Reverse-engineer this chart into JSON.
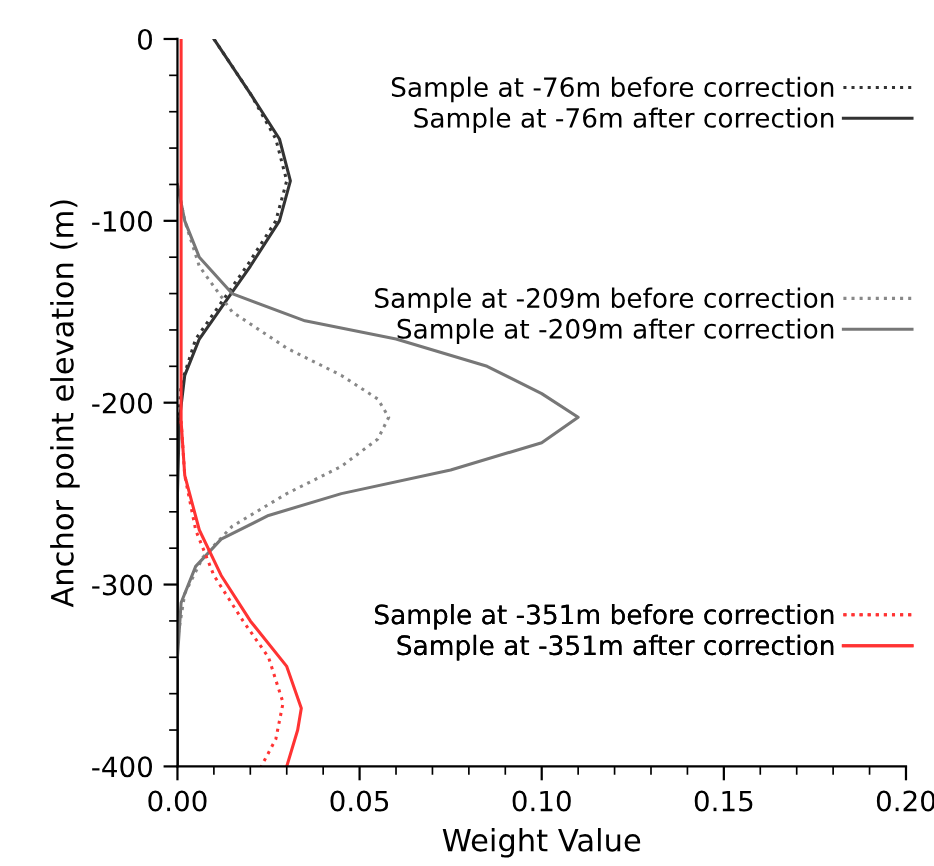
{
  "chart_data": {
    "type": "line",
    "xlabel": "Weight Value",
    "ylabel": "Anchor point elevation (m)",
    "xlim": [
      0,
      0.2
    ],
    "xticks": [
      {
        "value": 0,
        "label": "0.00"
      },
      {
        "value": 0.05,
        "label": "0.05"
      },
      {
        "value": 0.1,
        "label": "0.10"
      },
      {
        "value": 0.15,
        "label": "0.15"
      },
      {
        "value": 0.2,
        "label": "0.20"
      }
    ],
    "ylim": [
      -400,
      0
    ],
    "yticks": [
      0,
      -100,
      -200,
      -300,
      -400
    ],
    "grid": false,
    "legend": "right",
    "marker": "none",
    "series": [
      {
        "name": "Sample at -76m before correction",
        "color": "#333333",
        "line_style": "dotted",
        "x": [
          0.01,
          0.02,
          0.027,
          0.03,
          0.027,
          0.019,
          0.012,
          0.005,
          0.001,
          0,
          0
        ],
        "values": [
          0,
          -30,
          -55,
          -78,
          -100,
          -125,
          -145,
          -165,
          -190,
          -220,
          -400
        ]
      },
      {
        "name": "Sample at -76m after correction",
        "color": "#333333",
        "line_style": "solid",
        "x": [
          0.01,
          0.02,
          0.028,
          0.031,
          0.028,
          0.02,
          0.013,
          0.006,
          0.002,
          0.0005,
          0,
          0
        ],
        "values": [
          0,
          -30,
          -55,
          -78,
          -100,
          -125,
          -145,
          -165,
          -185,
          -210,
          -250,
          -400
        ]
      },
      {
        "name": "Sample at -209m before correction",
        "color": "#888888",
        "line_style": "dotted",
        "x": [
          0,
          0.002,
          0.006,
          0.015,
          0.03,
          0.045,
          0.055,
          0.058,
          0.055,
          0.045,
          0.03,
          0.015,
          0.007,
          0.002,
          0
        ],
        "values": [
          -80,
          -100,
          -125,
          -150,
          -170,
          -185,
          -198,
          -208,
          -220,
          -235,
          -250,
          -268,
          -285,
          -305,
          -330
        ]
      },
      {
        "name": "Sample at -209m after correction",
        "color": "#777777",
        "line_style": "solid",
        "x": [
          0,
          0.002,
          0.006,
          0.015,
          0.035,
          0.06,
          0.085,
          0.1,
          0.11,
          0.1,
          0.075,
          0.045,
          0.025,
          0.012,
          0.005,
          0.001,
          0
        ],
        "values": [
          -80,
          -100,
          -120,
          -140,
          -155,
          -165,
          -180,
          -195,
          -208,
          -222,
          -237,
          -250,
          -262,
          -275,
          -290,
          -310,
          -340
        ]
      },
      {
        "name": "Sample at -351m before correction",
        "color": "#ff3333",
        "line_style": "dotted",
        "x": [
          0.001,
          0.002,
          0.005,
          0.01,
          0.018,
          0.025,
          0.029,
          0.027,
          0.023
        ],
        "values": [
          -210,
          -240,
          -270,
          -295,
          -320,
          -340,
          -365,
          -385,
          -400
        ]
      },
      {
        "name": "Sample at -351m after correction",
        "color": "#ff3333",
        "line_style": "solid",
        "x": [
          0.001,
          0.001,
          0.002,
          0.006,
          0.012,
          0.02,
          0.03,
          0.034,
          0.033,
          0.03
        ],
        "values": [
          0,
          -210,
          -240,
          -270,
          -295,
          -320,
          -345,
          -368,
          -380,
          -400
        ]
      }
    ]
  }
}
